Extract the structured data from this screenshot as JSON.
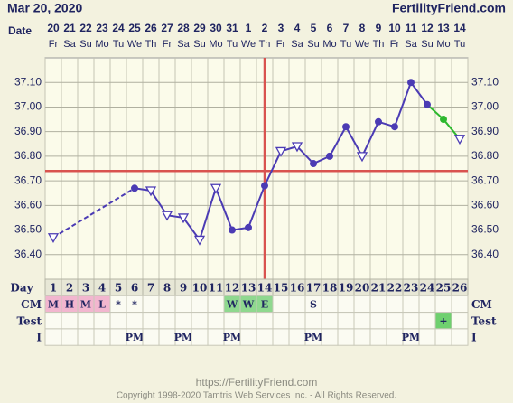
{
  "chart_data": {
    "type": "line",
    "title": "Mar 20, 2020",
    "site": "FertilityFriend.com",
    "date_label": "Date",
    "dates": [
      "20",
      "21",
      "22",
      "23",
      "24",
      "25",
      "26",
      "27",
      "28",
      "29",
      "30",
      "31",
      "1",
      "2",
      "3",
      "4",
      "5",
      "6",
      "7",
      "8",
      "9",
      "10",
      "11",
      "12",
      "13",
      "14"
    ],
    "weekdays": [
      "Fr",
      "Sa",
      "Su",
      "Mo",
      "Tu",
      "We",
      "Th",
      "Fr",
      "Sa",
      "Su",
      "Mo",
      "Tu",
      "We",
      "Th",
      "Fr",
      "Sa",
      "Su",
      "Mo",
      "Tu",
      "We",
      "Th",
      "Fr",
      "Sa",
      "Su",
      "Mo",
      "Tu"
    ],
    "day_label": "Day",
    "cycle_days": [
      1,
      2,
      3,
      4,
      5,
      6,
      7,
      8,
      9,
      10,
      11,
      12,
      13,
      14,
      15,
      16,
      17,
      18,
      19,
      20,
      21,
      22,
      23,
      24,
      25,
      26
    ],
    "ylim": [
      36.3,
      37.2
    ],
    "yticks": [
      {
        "value": 36.4,
        "label": "36.40"
      },
      {
        "value": 36.5,
        "label": "36.50"
      },
      {
        "value": 36.6,
        "label": "36.60"
      },
      {
        "value": 36.7,
        "label": "36.70"
      },
      {
        "value": 36.8,
        "label": "36.80"
      },
      {
        "value": 36.9,
        "label": "36.90"
      },
      {
        "value": 37.0,
        "label": "37.00"
      },
      {
        "value": 37.1,
        "label": "37.10"
      }
    ],
    "grid": true,
    "series": [
      {
        "color": "#4b3bb4",
        "values": [
          36.47,
          null,
          null,
          null,
          null,
          36.67,
          36.66,
          36.56,
          36.55,
          36.46,
          36.67,
          36.5,
          36.51,
          36.68,
          36.82,
          36.84,
          36.77,
          36.8,
          36.92,
          36.8,
          36.94,
          36.92,
          37.1,
          37.01,
          36.95,
          36.87
        ],
        "markers": [
          "triangle",
          null,
          null,
          null,
          null,
          "circle",
          "triangle",
          "triangle",
          "triangle",
          "triangle",
          "triangle",
          "circle",
          "circle",
          "circle",
          "triangle",
          "triangle",
          "circle",
          "circle",
          "circle",
          "triangle",
          "circle",
          "circle",
          "circle",
          "circle",
          "circle",
          "triangle"
        ],
        "marker_colors": [
          "#4b3bb4",
          "#4b3bb4",
          "#4b3bb4",
          "#4b3bb4",
          "#4b3bb4",
          "#4b3bb4",
          "#4b3bb4",
          "#4b3bb4",
          "#4b3bb4",
          "#4b3bb4",
          "#4b3bb4",
          "#4b3bb4",
          "#4b3bb4",
          "#4b3bb4",
          "#4b3bb4",
          "#4b3bb4",
          "#4b3bb4",
          "#4b3bb4",
          "#4b3bb4",
          "#4b3bb4",
          "#4b3bb4",
          "#4b3bb4",
          "#4b3bb4",
          "#4b3bb4",
          "#2eb82e",
          "#4b3bb4"
        ]
      }
    ],
    "coverline": {
      "value": 36.74,
      "color": "#d9534f"
    },
    "ovulation_day": {
      "value": 14,
      "color": "#d9534f"
    },
    "rows": [
      {
        "label": "CM",
        "values": [
          "M",
          "H",
          "M",
          "L",
          "*",
          "*",
          null,
          null,
          null,
          null,
          null,
          "W",
          "W",
          "E",
          null,
          null,
          "S",
          null,
          null,
          null,
          null,
          null,
          null,
          null,
          null,
          null
        ],
        "colors": [
          "#f2b6cf",
          "#f2b6cf",
          "#f2b6cf",
          "#f2b6cf",
          null,
          null,
          null,
          null,
          null,
          null,
          null,
          "#8fd88f",
          "#8fd88f",
          "#8fd88f",
          null,
          null,
          null,
          null,
          null,
          null,
          null,
          null,
          null,
          null,
          null,
          null
        ]
      },
      {
        "label": "Test",
        "values": [
          null,
          null,
          null,
          null,
          null,
          null,
          null,
          null,
          null,
          null,
          null,
          null,
          null,
          null,
          null,
          null,
          null,
          null,
          null,
          null,
          null,
          null,
          null,
          null,
          "+",
          null
        ],
        "colors": [
          null,
          null,
          null,
          null,
          null,
          null,
          null,
          null,
          null,
          null,
          null,
          null,
          null,
          null,
          null,
          null,
          null,
          null,
          null,
          null,
          null,
          null,
          null,
          null,
          "#6fd06f",
          null
        ]
      },
      {
        "label": "I",
        "values": [
          null,
          null,
          null,
          null,
          null,
          "PM",
          null,
          null,
          "PM",
          null,
          null,
          "PM",
          null,
          null,
          null,
          null,
          "PM",
          null,
          null,
          null,
          null,
          null,
          "PM",
          null,
          null,
          null
        ],
        "colors": [
          null,
          null,
          null,
          null,
          null,
          null,
          null,
          null,
          null,
          null,
          null,
          null,
          null,
          null,
          null,
          null,
          null,
          null,
          null,
          null,
          null,
          null,
          null,
          null,
          null,
          null
        ]
      }
    ],
    "footer": {
      "url": "https://FertilityFriend.com",
      "copyright": "Copyright 1998-2020 Tamtris Web Services Inc. - All Rights Reserved."
    }
  }
}
